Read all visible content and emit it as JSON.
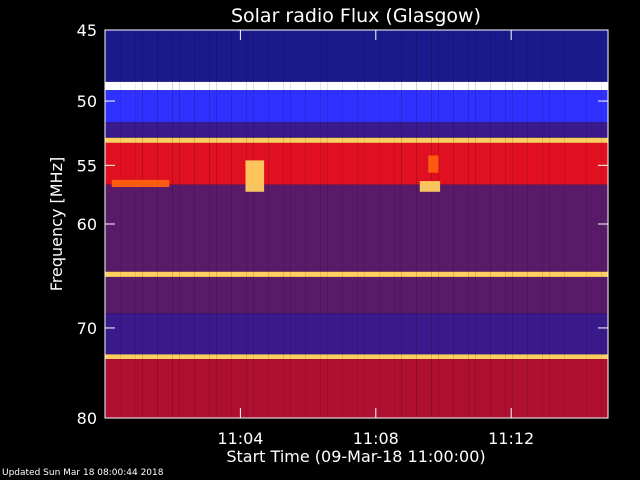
{
  "chart_data": {
    "type": "heatmap",
    "title": "Solar radio Flux (Glasgow)",
    "xlabel": "Start Time (09-Mar-18 11:00:00)",
    "ylabel": "Frequency [MHz]",
    "x_unit": "minutes after 11:00",
    "xlim": [
      0,
      14.86
    ],
    "x_ticks": [
      {
        "value": 4,
        "label": "11:04"
      },
      {
        "value": 8,
        "label": "11:08"
      },
      {
        "value": 12,
        "label": "11:12"
      }
    ],
    "ylim": [
      45,
      80
    ],
    "y_scale": "log",
    "y_ticks": [
      {
        "value": 45,
        "label": "45"
      },
      {
        "value": 50,
        "label": "50"
      },
      {
        "value": 55,
        "label": "55"
      },
      {
        "value": 60,
        "label": "60"
      },
      {
        "value": 70,
        "label": "70"
      },
      {
        "value": 80,
        "label": "80"
      }
    ],
    "colormap": [
      "#000020",
      "#1a1a8c",
      "#3030ff",
      "#3a1a8a",
      "#5a1a6a",
      "#b01030",
      "#e01020",
      "#ff6010",
      "#ffd060",
      "#ffffff"
    ],
    "bands": [
      {
        "from": 44.8,
        "to": 45.4,
        "level": 0.15
      },
      {
        "from": 45.4,
        "to": 48.6,
        "level": 0.1
      },
      {
        "from": 48.6,
        "to": 49.2,
        "level": 0.95
      },
      {
        "from": 49.2,
        "to": 51.6,
        "level": 0.2
      },
      {
        "from": 51.6,
        "to": 52.8,
        "level": 0.35
      },
      {
        "from": 52.8,
        "to": 53.2,
        "level": 0.85
      },
      {
        "from": 53.2,
        "to": 56.6,
        "level": 0.62
      },
      {
        "from": 56.6,
        "to": 60.4,
        "level": 0.42
      },
      {
        "from": 60.4,
        "to": 64.4,
        "level": 0.4
      },
      {
        "from": 64.4,
        "to": 64.9,
        "level": 0.85
      },
      {
        "from": 64.9,
        "to": 68.5,
        "level": 0.45
      },
      {
        "from": 68.5,
        "to": 72.8,
        "level": 0.35
      },
      {
        "from": 72.8,
        "to": 73.3,
        "level": 0.85
      },
      {
        "from": 73.3,
        "to": 80.2,
        "level": 0.6
      }
    ],
    "bursts": [
      {
        "t0": 0.2,
        "t1": 1.9,
        "f0": 56.2,
        "f1": 56.8,
        "level": 0.8
      },
      {
        "t0": 4.15,
        "t1": 4.7,
        "f0": 54.6,
        "f1": 57.2,
        "level": 0.85
      },
      {
        "t0": 9.3,
        "t1": 9.9,
        "f0": 56.3,
        "f1": 57.2,
        "level": 0.9
      },
      {
        "t0": 9.55,
        "t1": 9.85,
        "f0": 54.2,
        "f1": 55.6,
        "level": 0.75
      }
    ],
    "grid": false,
    "legend": "none"
  },
  "footer": {
    "updated": "Updated Sun Mar 18 08:00:44 2018"
  }
}
